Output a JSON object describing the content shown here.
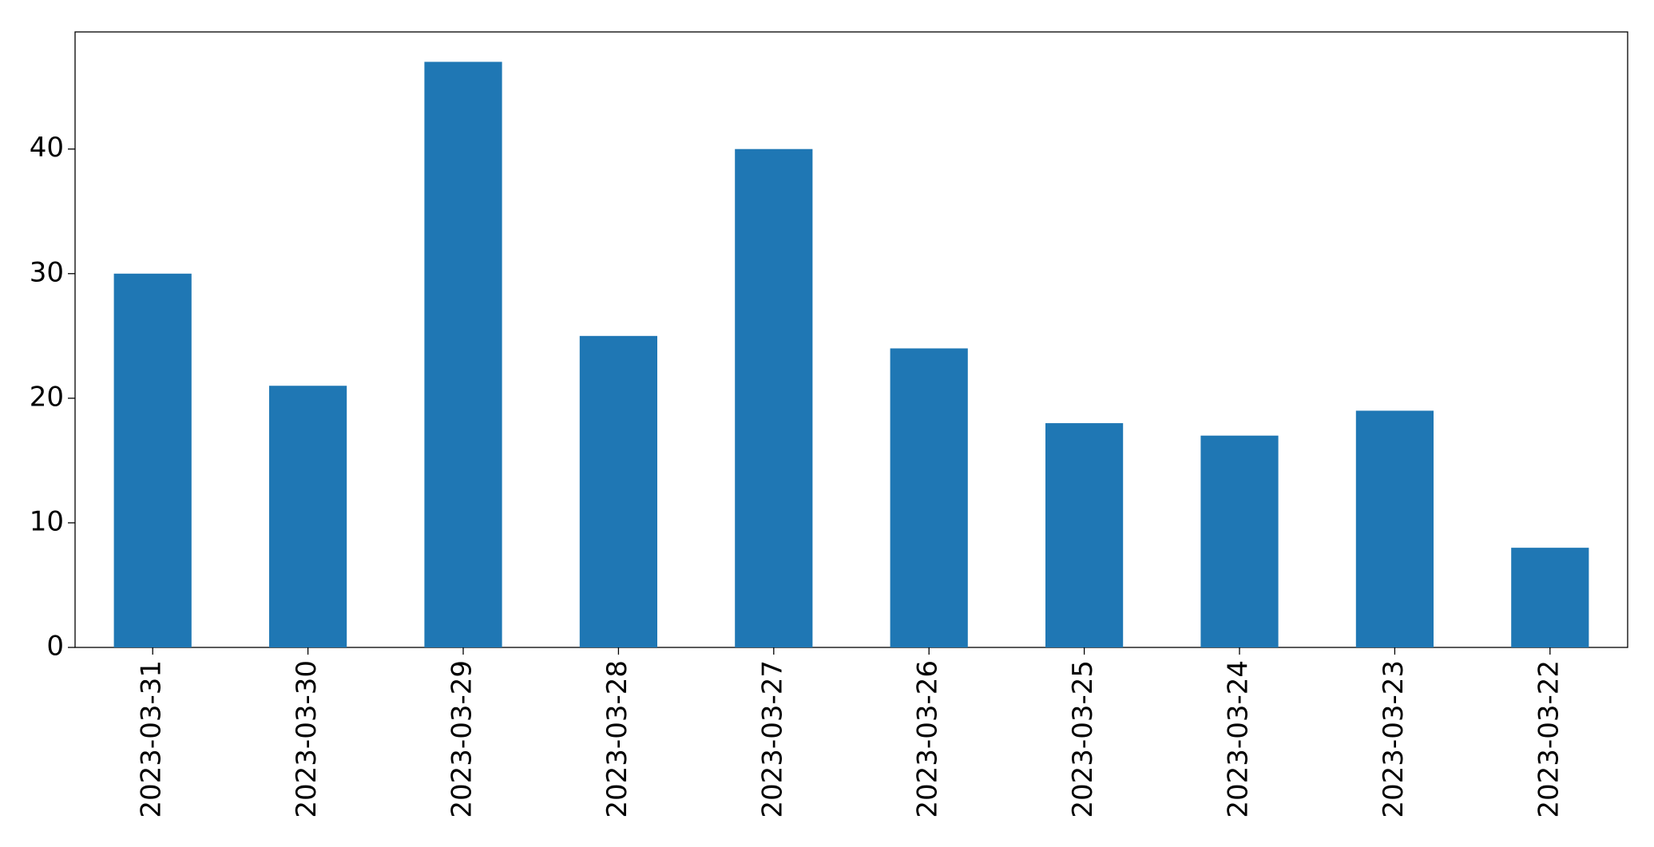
{
  "chart_data": {
    "type": "bar",
    "categories": [
      "2023-03-31",
      "2023-03-30",
      "2023-03-29",
      "2023-03-28",
      "2023-03-27",
      "2023-03-26",
      "2023-03-25",
      "2023-03-24",
      "2023-03-23",
      "2023-03-22"
    ],
    "values": [
      30,
      21,
      47,
      25,
      40,
      24,
      18,
      17,
      19,
      8
    ],
    "color": "#1f77b4",
    "ylim": [
      0,
      49.4
    ],
    "yticks": [
      0,
      10,
      20,
      30,
      40
    ],
    "grid": false
  }
}
